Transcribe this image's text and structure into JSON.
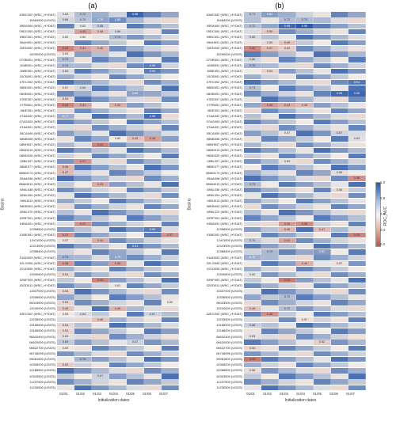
{
  "colorscale": {
    "min": 0.2,
    "max": 1.0,
    "low_color": "#b85450",
    "mid_color": "#f0ece8",
    "high_color": "#2857a8",
    "label": "ROC_AUC",
    "ticks": [
      "1.0",
      "0.8",
      "0.6",
      "0.4",
      "0.2"
    ]
  },
  "panels": [
    {
      "title": "(a)",
      "xlabel": "Initialization dates",
      "xticks": [
        "01/01",
        "01/02",
        "01/03",
        "01/04",
        "01/05",
        "01/06",
        "01/07"
      ]
    },
    {
      "title": "(b)",
      "xlabel": "Initialization dates",
      "xticks": [
        "01/01",
        "01/02",
        "01/03",
        "01/04",
        "01/05",
        "01/06",
        "01/07"
      ]
    }
  ],
  "ylabels": [
    "10MC002 (WSC_HYDAT)",
    "15484000 (USGS)",
    "09EA004 (WSC_HYDAT)",
    "09DC004 (WSC_HYDAT)",
    "09BC001 (WSC_HYDAT)",
    "09AH001 (WSC_HYDAT)",
    "10ED002 (WSC_HYDAT)",
    "15290000 (USGS)",
    "07OB001 (WSC_HYDAT)",
    "10AB001 (WSC_HYDAT)",
    "10BE001 (WSC_HYDAT)",
    "10CB001 (WSC_HYDAT)",
    "07EC002 (WSC_HYDAT)",
    "06BD001 (WSC_HYDAT)",
    "08OB001 (WSC_HYDAT)",
    "07EE007 (WSC_HYDAT)",
    "07FB001 (WSC_HYDAT)",
    "08JE001 (WSC_HYDAT)",
    "07AA002 (WSC_HYDAT)",
    "07AG003 (WSC_HYDAT)",
    "07AA001 (WSC_HYDAT)",
    "05CA009 (WSC_HYDAT)",
    "08NB005 (WSC_HYDAT)",
    "08NH007 (WSC_HYDAT)",
    "08ND013 (WSC_HYDAT)",
    "08ND025 (WSC_HYDAT)",
    "05BL027 (WSC_HYDAT)",
    "08NE077 (WSC_HYDAT)",
    "08NM174 (WSC_HYDAT)",
    "05AA008 (WSC_HYDAT)",
    "08NM013 (WSC_HYDAT)",
    "08NL038 (WSC_HYDAT)",
    "08NL004 (WSC_HYDAT)",
    "08NJ013 (WSC_HYDAT)",
    "08KB003 (WSC_HYDAT)",
    "08NL070 (WSC_HYDAT)",
    "02RF001 (WSC_HYDAT)",
    "04NA001 (WSC_HYDAT)",
    "12358500 (USGS)",
    "01BE001 (WSC_HYDAT)",
    "12411000 (USGS)",
    "12413000 (USGS)",
    "12388400 (USGS)",
    "01AD003 (WSC_HYDAT)",
    "02LG005 (WSC_HYDAT)",
    "02LD005 (WSC_HYDAT)",
    "13340600 (USGS)",
    "02NF003 (WSC_HYDAT)",
    "02OD011 (WSC_HYDAT)",
    "13337000 (USGS)",
    "13336500 (USGS)",
    "06043500 (USGS)",
    "13240000 (USGS)",
    "02EC002 (WSC_HYDAT)",
    "13235000 (USGS)",
    "13185000 (USGS)",
    "13186000 (USGS)",
    "06632400 (USGS)",
    "06620000 (USGS)",
    "06622700 (USGS)",
    "06746095 (USGS)",
    "09081600 (USGS)",
    "10308200 (USGS)",
    "10268500 (USGS)",
    "10343500 (USGS)",
    "11237500 (USGS)",
    "11230500 (USGS)"
  ],
  "dataA": [
    [
      0.63,
      0.72,
      null,
      null,
      0.96,
      null,
      null
    ],
    [
      0.66,
      0.7,
      0.79,
      0.85,
      null,
      null,
      null
    ],
    [
      null,
      0.62,
      0.68,
      null,
      null,
      null,
      null
    ],
    [
      null,
      0.4,
      0.48,
      0.66,
      null,
      null,
      null
    ],
    [
      0.6,
      0.6,
      null,
      0.74,
      null,
      null,
      null
    ],
    [
      null,
      null,
      null,
      null,
      null,
      null,
      null
    ],
    [
      0.33,
      0.41,
      0.45,
      null,
      null,
      null,
      null
    ],
    [
      0.59,
      null,
      null,
      null,
      null,
      null,
      null
    ],
    [
      0.73,
      null,
      null,
      null,
      null,
      null,
      null
    ],
    [
      0.74,
      null,
      null,
      null,
      null,
      0.9,
      null
    ],
    [
      0.64,
      null,
      null,
      null,
      null,
      0.9,
      null
    ],
    [
      null,
      null,
      null,
      null,
      null,
      null,
      null
    ],
    [
      null,
      null,
      null,
      null,
      null,
      null,
      null
    ],
    [
      0.57,
      0.65,
      null,
      null,
      null,
      null,
      null
    ],
    [
      null,
      null,
      null,
      null,
      0.8,
      null,
      null
    ],
    [
      0.54,
      null,
      null,
      null,
      null,
      null,
      null
    ],
    [
      0.33,
      0.41,
      null,
      0.44,
      null,
      null,
      null
    ],
    [
      null,
      null,
      null,
      null,
      null,
      null,
      null
    ],
    [
      0.77,
      null,
      null,
      null,
      null,
      0.95,
      null
    ],
    [
      null,
      null,
      null,
      null,
      null,
      null,
      null
    ],
    [
      null,
      null,
      null,
      null,
      null,
      null,
      null
    ],
    [
      null,
      null,
      null,
      null,
      null,
      null,
      null
    ],
    [
      null,
      null,
      null,
      0.6,
      0.49,
      0.4,
      null
    ],
    [
      null,
      null,
      0.33,
      null,
      null,
      null,
      null
    ],
    [
      null,
      null,
      null,
      null,
      null,
      null,
      null
    ],
    [
      null,
      null,
      null,
      null,
      null,
      null,
      null
    ],
    [
      null,
      0.37,
      null,
      null,
      null,
      null,
      null
    ],
    [
      0.46,
      null,
      null,
      null,
      null,
      null,
      null
    ],
    [
      0.47,
      null,
      null,
      null,
      null,
      null,
      null
    ],
    [
      null,
      null,
      null,
      null,
      null,
      null,
      null
    ],
    [
      null,
      null,
      0.43,
      null,
      null,
      null,
      null
    ],
    [
      null,
      null,
      null,
      null,
      null,
      null,
      null
    ],
    [
      null,
      null,
      null,
      null,
      null,
      null,
      null
    ],
    [
      null,
      null,
      null,
      null,
      null,
      null,
      null
    ],
    [
      null,
      null,
      null,
      null,
      null,
      null,
      null
    ],
    [
      null,
      null,
      null,
      null,
      null,
      null,
      null
    ],
    [
      null,
      null,
      null,
      null,
      null,
      null,
      null
    ],
    [
      null,
      0.37,
      null,
      null,
      null,
      null,
      null
    ],
    [
      null,
      null,
      null,
      null,
      null,
      0.9,
      null
    ],
    [
      0.37,
      null,
      null,
      null,
      null,
      null,
      0.37
    ],
    [
      0.57,
      null,
      0.44,
      null,
      null,
      null,
      null
    ],
    [
      null,
      null,
      null,
      null,
      0.91,
      null,
      null
    ],
    [
      null,
      null,
      null,
      null,
      null,
      null,
      null
    ],
    [
      0.75,
      null,
      null,
      0.79,
      null,
      null,
      null
    ],
    [
      0.38,
      null,
      null,
      0.39,
      null,
      null,
      null
    ],
    [
      null,
      null,
      null,
      null,
      null,
      null,
      null
    ],
    [
      0.54,
      null,
      null,
      null,
      null,
      null,
      null
    ],
    [
      null,
      null,
      0.33,
      null,
      null,
      null,
      null
    ],
    [
      null,
      null,
      null,
      0.61,
      null,
      null,
      null
    ],
    [
      0.54,
      null,
      null,
      null,
      null,
      null,
      null
    ],
    [
      null,
      null,
      null,
      null,
      null,
      null,
      null
    ],
    [
      0.54,
      null,
      null,
      null,
      null,
      null,
      0.6
    ],
    [
      0.49,
      null,
      null,
      0.45,
      null,
      null,
      null
    ],
    [
      0.59,
      0.64,
      null,
      null,
      null,
      0.67,
      null
    ],
    [
      null,
      null,
      0.49,
      null,
      null,
      null,
      null
    ],
    [
      0.54,
      null,
      null,
      null,
      null,
      null,
      null
    ],
    [
      0.54,
      null,
      null,
      null,
      null,
      null,
      null
    ],
    [
      0.63,
      null,
      null,
      null,
      null,
      null,
      null
    ],
    [
      0.69,
      null,
      null,
      null,
      0.67,
      null,
      null
    ],
    [
      0.59,
      null,
      null,
      null,
      null,
      null,
      null
    ],
    [
      null,
      null,
      null,
      null,
      null,
      null,
      null
    ],
    [
      null,
      0.75,
      null,
      null,
      null,
      null,
      null
    ],
    [
      0.52,
      null,
      null,
      null,
      null,
      null,
      null
    ],
    [
      null,
      null,
      null,
      null,
      null,
      null,
      null
    ],
    [
      null,
      null,
      0.67,
      null,
      null,
      null,
      null
    ],
    [
      null,
      null,
      null,
      null,
      null,
      null,
      null
    ],
    [
      null,
      null,
      null,
      null,
      null,
      null,
      null
    ]
  ],
  "dataB": [
    [
      0.71,
      0.81,
      null,
      null,
      null,
      null,
      null
    ],
    [
      null,
      null,
      0.72,
      0.73,
      null,
      null,
      null
    ],
    [
      0.72,
      null,
      0.95,
      0.99,
      null,
      null,
      null
    ],
    [
      null,
      0.5,
      null,
      null,
      null,
      null,
      null
    ],
    [
      0.65,
      null,
      null,
      null,
      null,
      null,
      null
    ],
    [
      null,
      0.55,
      0.49,
      null,
      null,
      null,
      null
    ],
    [
      0.34,
      0.47,
      0.52,
      null,
      null,
      null,
      null
    ],
    [
      null,
      null,
      null,
      null,
      null,
      null,
      null
    ],
    [
      0.66,
      null,
      null,
      null,
      null,
      null,
      null
    ],
    [
      0.75,
      null,
      null,
      null,
      null,
      null,
      null
    ],
    [
      null,
      0.54,
      null,
      null,
      null,
      null,
      null
    ],
    [
      null,
      null,
      null,
      null,
      null,
      null,
      null
    ],
    [
      null,
      null,
      null,
      null,
      null,
      null,
      0.91
    ],
    [
      0.71,
      null,
      null,
      null,
      null,
      null,
      null
    ],
    [
      null,
      null,
      null,
      null,
      null,
      0.95,
      0.96
    ],
    [
      null,
      null,
      null,
      null,
      null,
      null,
      null
    ],
    [
      null,
      0.38,
      0.43,
      0.46,
      null,
      null,
      null
    ],
    [
      null,
      null,
      null,
      null,
      null,
      null,
      null
    ],
    [
      null,
      null,
      null,
      null,
      null,
      null,
      null
    ],
    [
      null,
      null,
      null,
      null,
      null,
      null,
      null
    ],
    [
      null,
      null,
      null,
      null,
      null,
      null,
      null
    ],
    [
      null,
      null,
      0.57,
      null,
      null,
      0.67,
      null
    ],
    [
      null,
      null,
      null,
      null,
      null,
      null,
      0.63
    ],
    [
      null,
      null,
      null,
      null,
      null,
      null,
      null
    ],
    [
      null,
      null,
      null,
      null,
      null,
      null,
      null
    ],
    [
      null,
      null,
      null,
      null,
      null,
      null,
      null
    ],
    [
      null,
      null,
      0.63,
      null,
      null,
      null,
      null
    ],
    [
      null,
      null,
      null,
      null,
      null,
      null,
      null
    ],
    [
      null,
      null,
      null,
      null,
      null,
      0.56,
      null
    ],
    [
      null,
      null,
      null,
      null,
      null,
      null,
      0.36
    ],
    [
      0.73,
      null,
      null,
      null,
      null,
      null,
      null
    ],
    [
      null,
      null,
      null,
      null,
      null,
      0.56,
      null
    ],
    [
      null,
      null,
      null,
      null,
      null,
      null,
      null
    ],
    [
      null,
      null,
      null,
      null,
      null,
      null,
      null
    ],
    [
      null,
      null,
      null,
      null,
      null,
      null,
      null
    ],
    [
      null,
      null,
      null,
      null,
      null,
      null,
      null
    ],
    [
      null,
      null,
      null,
      null,
      null,
      null,
      null
    ],
    [
      null,
      null,
      0.39,
      0.35,
      null,
      null,
      null
    ],
    [
      null,
      null,
      0.46,
      null,
      0.47,
      null,
      null
    ],
    [
      null,
      null,
      null,
      null,
      null,
      null,
      0.33
    ],
    [
      0.7,
      null,
      0.41,
      null,
      null,
      null,
      null
    ],
    [
      null,
      null,
      null,
      null,
      null,
      null,
      null
    ],
    [
      null,
      0.74,
      null,
      null,
      0.82,
      null,
      null
    ],
    [
      0.76,
      null,
      null,
      null,
      null,
      null,
      null
    ],
    [
      null,
      null,
      null,
      0.44,
      null,
      0.57,
      null
    ],
    [
      null,
      null,
      null,
      null,
      null,
      null,
      null
    ],
    [
      0.62,
      null,
      null,
      null,
      null,
      null,
      null
    ],
    [
      null,
      null,
      0.31,
      null,
      null,
      null,
      null
    ],
    [
      null,
      null,
      null,
      null,
      null,
      null,
      null
    ],
    [
      null,
      null,
      null,
      null,
      null,
      null,
      null
    ],
    [
      null,
      null,
      0.72,
      null,
      null,
      null,
      null
    ],
    [
      null,
      null,
      null,
      null,
      null,
      null,
      null
    ],
    [
      0.49,
      null,
      0.72,
      null,
      null,
      null,
      null
    ],
    [
      null,
      0.36,
      null,
      null,
      null,
      null,
      null
    ],
    [
      null,
      null,
      null,
      0.57,
      null,
      null,
      null
    ],
    [
      0.68,
      null,
      null,
      null,
      null,
      null,
      null
    ],
    [
      null,
      null,
      null,
      null,
      null,
      null,
      null
    ],
    [
      0.63,
      null,
      null,
      null,
      null,
      null,
      null
    ],
    [
      null,
      null,
      null,
      null,
      0.52,
      null,
      null
    ],
    [
      0.54,
      null,
      null,
      null,
      null,
      null,
      null
    ],
    [
      null,
      null,
      null,
      null,
      null,
      null,
      null
    ],
    [
      0.29,
      null,
      null,
      null,
      null,
      null,
      null
    ],
    [
      null,
      null,
      null,
      null,
      null,
      null,
      null
    ],
    [
      0.56,
      null,
      null,
      null,
      null,
      null,
      null
    ],
    [
      null,
      null,
      null,
      null,
      null,
      null,
      null
    ],
    [
      null,
      null,
      null,
      null,
      null,
      null,
      null
    ],
    [
      null,
      null,
      null,
      null,
      null,
      null,
      null
    ]
  ]
}
